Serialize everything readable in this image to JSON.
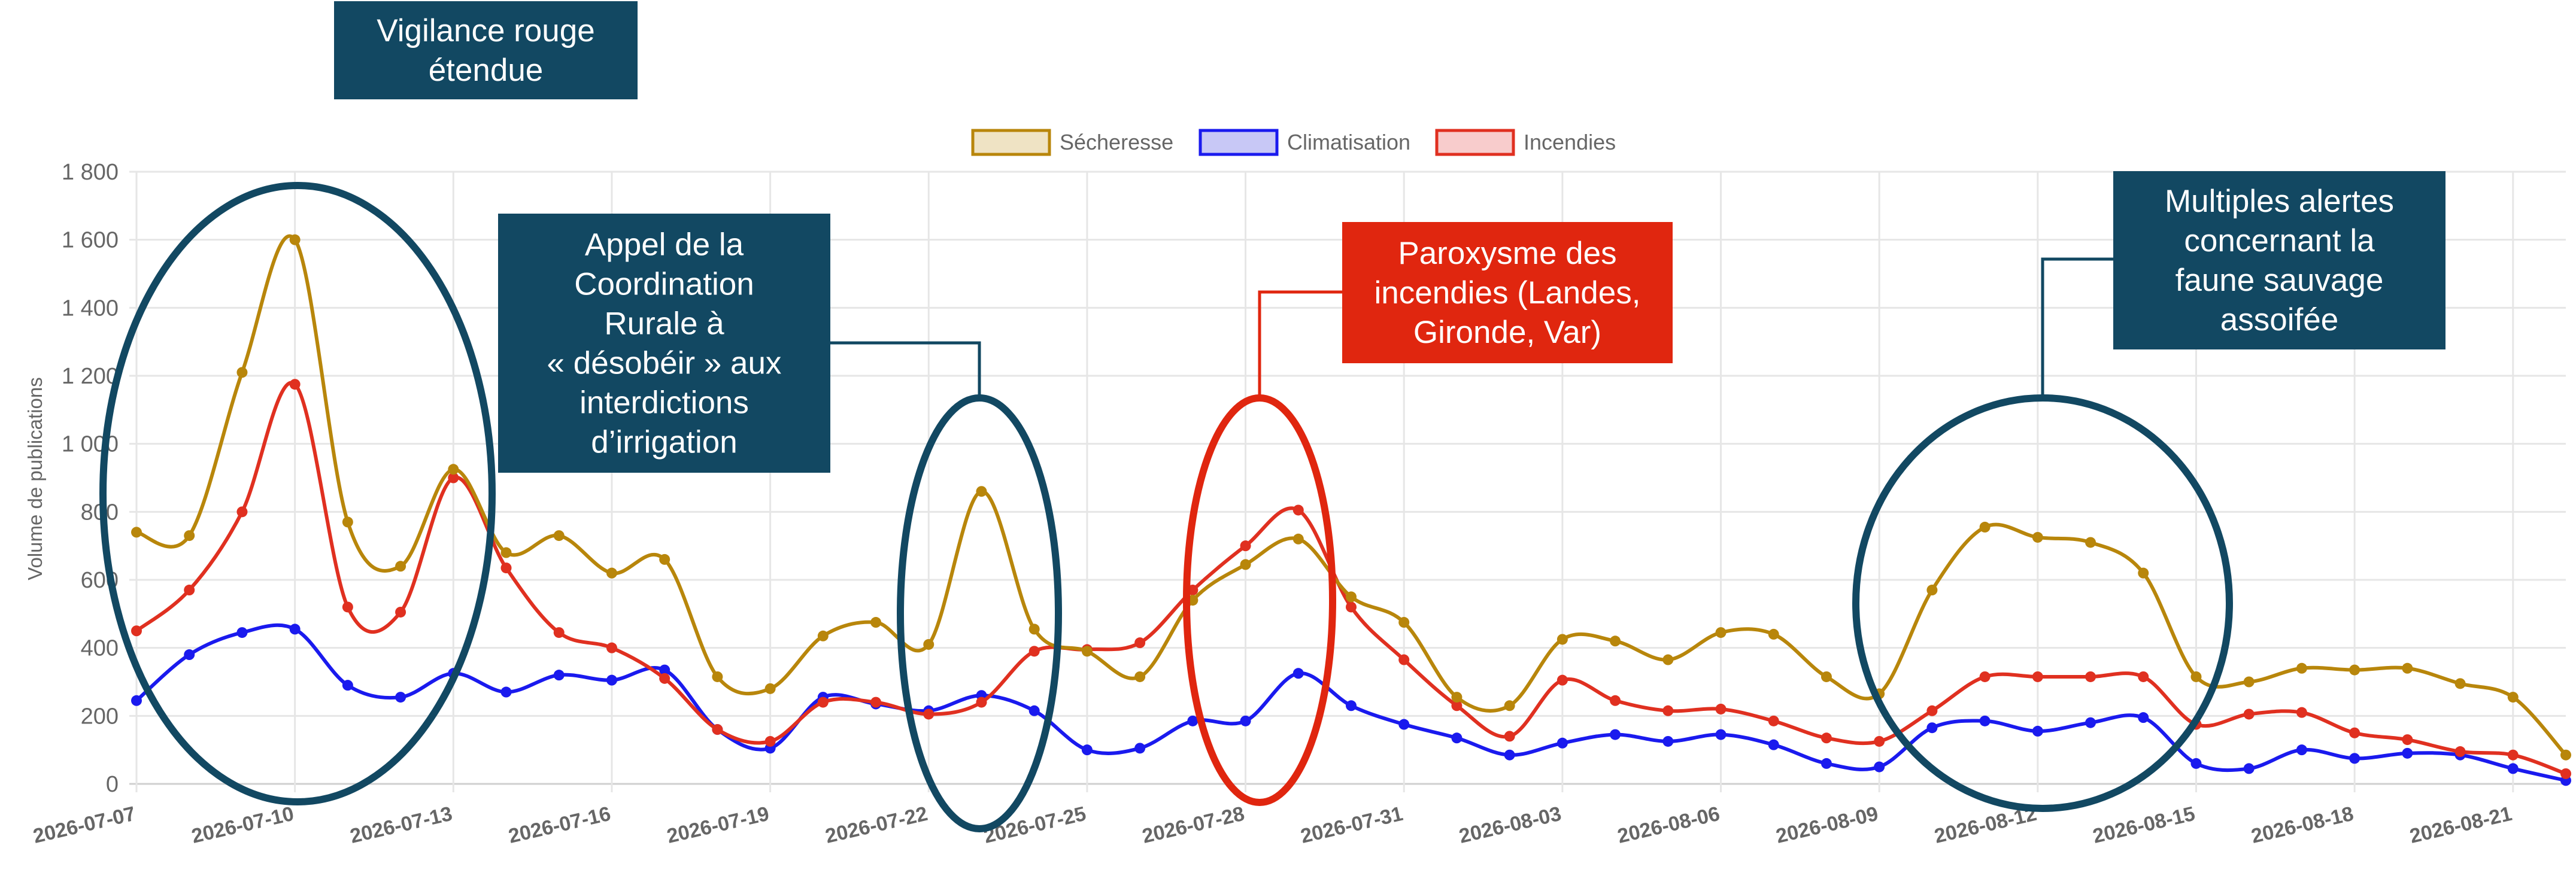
{
  "chart_data": {
    "type": "line",
    "ylabel": "Volume de publications",
    "xlabel": "",
    "ylim": [
      0,
      1800
    ],
    "yticks": [
      "0",
      "200",
      "400",
      "600",
      "800",
      "1 000",
      "1 200",
      "1 400",
      "1 600",
      "1 800"
    ],
    "x": [
      "2026-07-07",
      "2026-07-08",
      "2026-07-09",
      "2026-07-10",
      "2026-07-11",
      "2026-07-12",
      "2026-07-13",
      "2026-07-14",
      "2026-07-15",
      "2026-07-16",
      "2026-07-17",
      "2026-07-18",
      "2026-07-19",
      "2026-07-20",
      "2026-07-21",
      "2026-07-22",
      "2026-07-23",
      "2026-07-24",
      "2026-07-25",
      "2026-07-26",
      "2026-07-27",
      "2026-07-28",
      "2026-07-29",
      "2026-07-30",
      "2026-07-31",
      "2026-08-01",
      "2026-08-02",
      "2026-08-03",
      "2026-08-04",
      "2026-08-05",
      "2026-08-06",
      "2026-08-07",
      "2026-08-08",
      "2026-08-09",
      "2026-08-10",
      "2026-08-11",
      "2026-08-12",
      "2026-08-13",
      "2026-08-14",
      "2026-08-15",
      "2026-08-16",
      "2026-08-17",
      "2026-08-18",
      "2026-08-19",
      "2026-08-20",
      "2026-08-21",
      "2026-08-22"
    ],
    "xtick_labels": [
      "2026-07-07",
      "2026-07-10",
      "2026-07-13",
      "2026-07-16",
      "2026-07-19",
      "2026-07-22",
      "2026-07-25",
      "2026-07-28",
      "2026-07-31",
      "2026-08-03",
      "2026-08-06",
      "2026-08-09",
      "2026-08-12",
      "2026-08-15",
      "2026-08-18",
      "2026-08-21"
    ],
    "grid": true,
    "legend_position": "top",
    "series": [
      {
        "name": "Sécheresse",
        "color": "#b8860b",
        "fill": "#efe3c4",
        "values": [
          740,
          730,
          1210,
          1600,
          770,
          640,
          925,
          680,
          730,
          620,
          660,
          315,
          280,
          435,
          475,
          410,
          860,
          455,
          390,
          315,
          540,
          645,
          720,
          550,
          475,
          255,
          230,
          425,
          420,
          365,
          445,
          440,
          315,
          265,
          570,
          755,
          725,
          710,
          620,
          315,
          300,
          340,
          335,
          340,
          295,
          255,
          85
        ]
      },
      {
        "name": "Climatisation",
        "color": "#1a1aee",
        "fill": "#c8c8f6",
        "values": [
          245,
          380,
          445,
          455,
          290,
          255,
          325,
          270,
          320,
          305,
          335,
          160,
          105,
          255,
          235,
          215,
          260,
          215,
          100,
          105,
          185,
          185,
          325,
          230,
          175,
          135,
          85,
          120,
          145,
          125,
          145,
          115,
          60,
          50,
          165,
          185,
          155,
          180,
          195,
          60,
          45,
          100,
          75,
          90,
          85,
          45,
          10
        ]
      },
      {
        "name": "Incendies",
        "color": "#e03020",
        "fill": "#f8cccc",
        "values": [
          450,
          570,
          800,
          1175,
          520,
          505,
          900,
          635,
          445,
          400,
          310,
          160,
          125,
          240,
          240,
          205,
          240,
          390,
          395,
          415,
          570,
          700,
          805,
          520,
          365,
          230,
          140,
          305,
          245,
          215,
          220,
          185,
          135,
          125,
          215,
          315,
          315,
          315,
          315,
          175,
          205,
          210,
          150,
          130,
          95,
          85,
          30
        ]
      }
    ]
  },
  "annotations": {
    "vigilance": "Vigilance rouge\nétendue",
    "appel": "Appel de la\nCoordination\nRurale à\n« désobéir » aux\ninterdictions\nd’irrigation",
    "paroxysme": "Paroxysme des\nincendies (Landes,\nGironde, Var)",
    "alertes": "Multiples alertes\nconcernant la\nfaune sauvage\nassoifée"
  },
  "colors": {
    "navy": "#124862",
    "red": "#e0260f"
  }
}
